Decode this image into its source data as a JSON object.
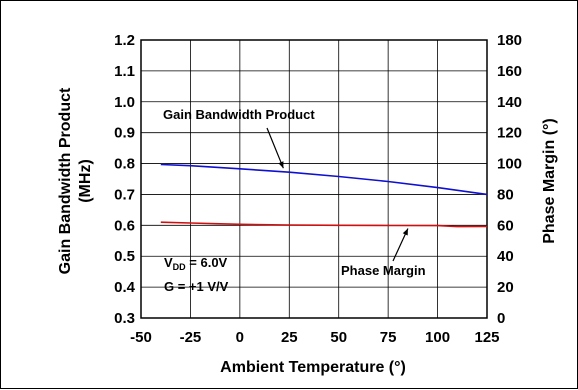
{
  "chart_data": {
    "type": "line",
    "title": "",
    "xlabel": "Ambient Temperature (°)",
    "ylabel_left": "Gain Bandwidth Product (MHz)",
    "ylabel_left_lines": [
      "Gain Bandwidth Product",
      "(MHz)"
    ],
    "ylabel_right": "Phase Margin (°)",
    "xlim": [
      -50,
      125
    ],
    "ylim_left": [
      0.3,
      1.2
    ],
    "ylim_right": [
      0,
      180
    ],
    "grid": true,
    "x_ticks": [
      "-50",
      "-25",
      "0",
      "25",
      "50",
      "75",
      "100",
      "125"
    ],
    "y_left_ticks": [
      "0.3",
      "0.4",
      "0.5",
      "0.6",
      "0.7",
      "0.8",
      "0.9",
      "1.0",
      "1.1",
      "1.2"
    ],
    "y_right_ticks": [
      "0",
      "20",
      "40",
      "60",
      "80",
      "100",
      "120",
      "140",
      "160",
      "180"
    ],
    "series": [
      {
        "name": "Gain Bandwidth Product",
        "axis": "left",
        "color": "#1010d0",
        "x": [
          -40,
          -25,
          0,
          25,
          50,
          75,
          100,
          125
        ],
        "y": [
          0.797,
          0.793,
          0.783,
          0.772,
          0.758,
          0.742,
          0.722,
          0.7
        ]
      },
      {
        "name": "Phase Margin",
        "axis": "right",
        "color": "#d01010",
        "x": [
          -40,
          -25,
          0,
          25,
          50,
          75,
          100,
          110,
          125
        ],
        "y": [
          62.0,
          61.5,
          60.7,
          60.2,
          60.0,
          59.9,
          59.8,
          59.2,
          59.3
        ]
      }
    ],
    "annotations": [
      {
        "text": "Gain Bandwidth Product",
        "arrow_to": {
          "x": 22,
          "y": 0.772,
          "axis": "left"
        }
      },
      {
        "text": "Phase Margin",
        "arrow_to": {
          "x": 85,
          "y": 59.9,
          "axis": "right"
        }
      }
    ],
    "conditions": {
      "vdd": {
        "prefix": "V",
        "sub": "DD",
        "suffix": " = 6.0V"
      },
      "gain": "G = +1 V/V"
    }
  }
}
